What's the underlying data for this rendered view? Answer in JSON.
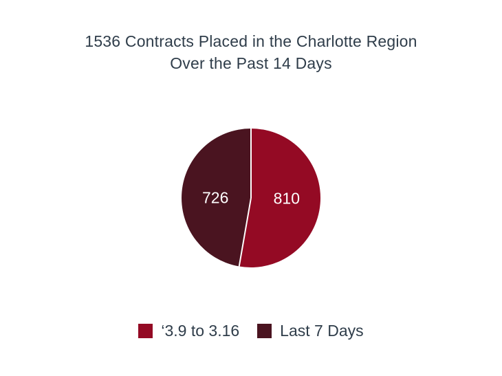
{
  "chart_data": {
    "type": "pie",
    "title_lines": [
      "1536 Contracts Placed in the Charlotte Region",
      "Over the Past 14 Days"
    ],
    "slices": [
      {
        "label": "‘3.9 to 3.16",
        "value": 810,
        "data_label": "810",
        "color": "#940a24"
      },
      {
        "label": "Last 7 Days",
        "value": 726,
        "data_label": "726",
        "color": "#4a1420"
      }
    ],
    "start_angle": "12 o'clock",
    "direction": "clockwise",
    "legend_position": "bottom"
  }
}
